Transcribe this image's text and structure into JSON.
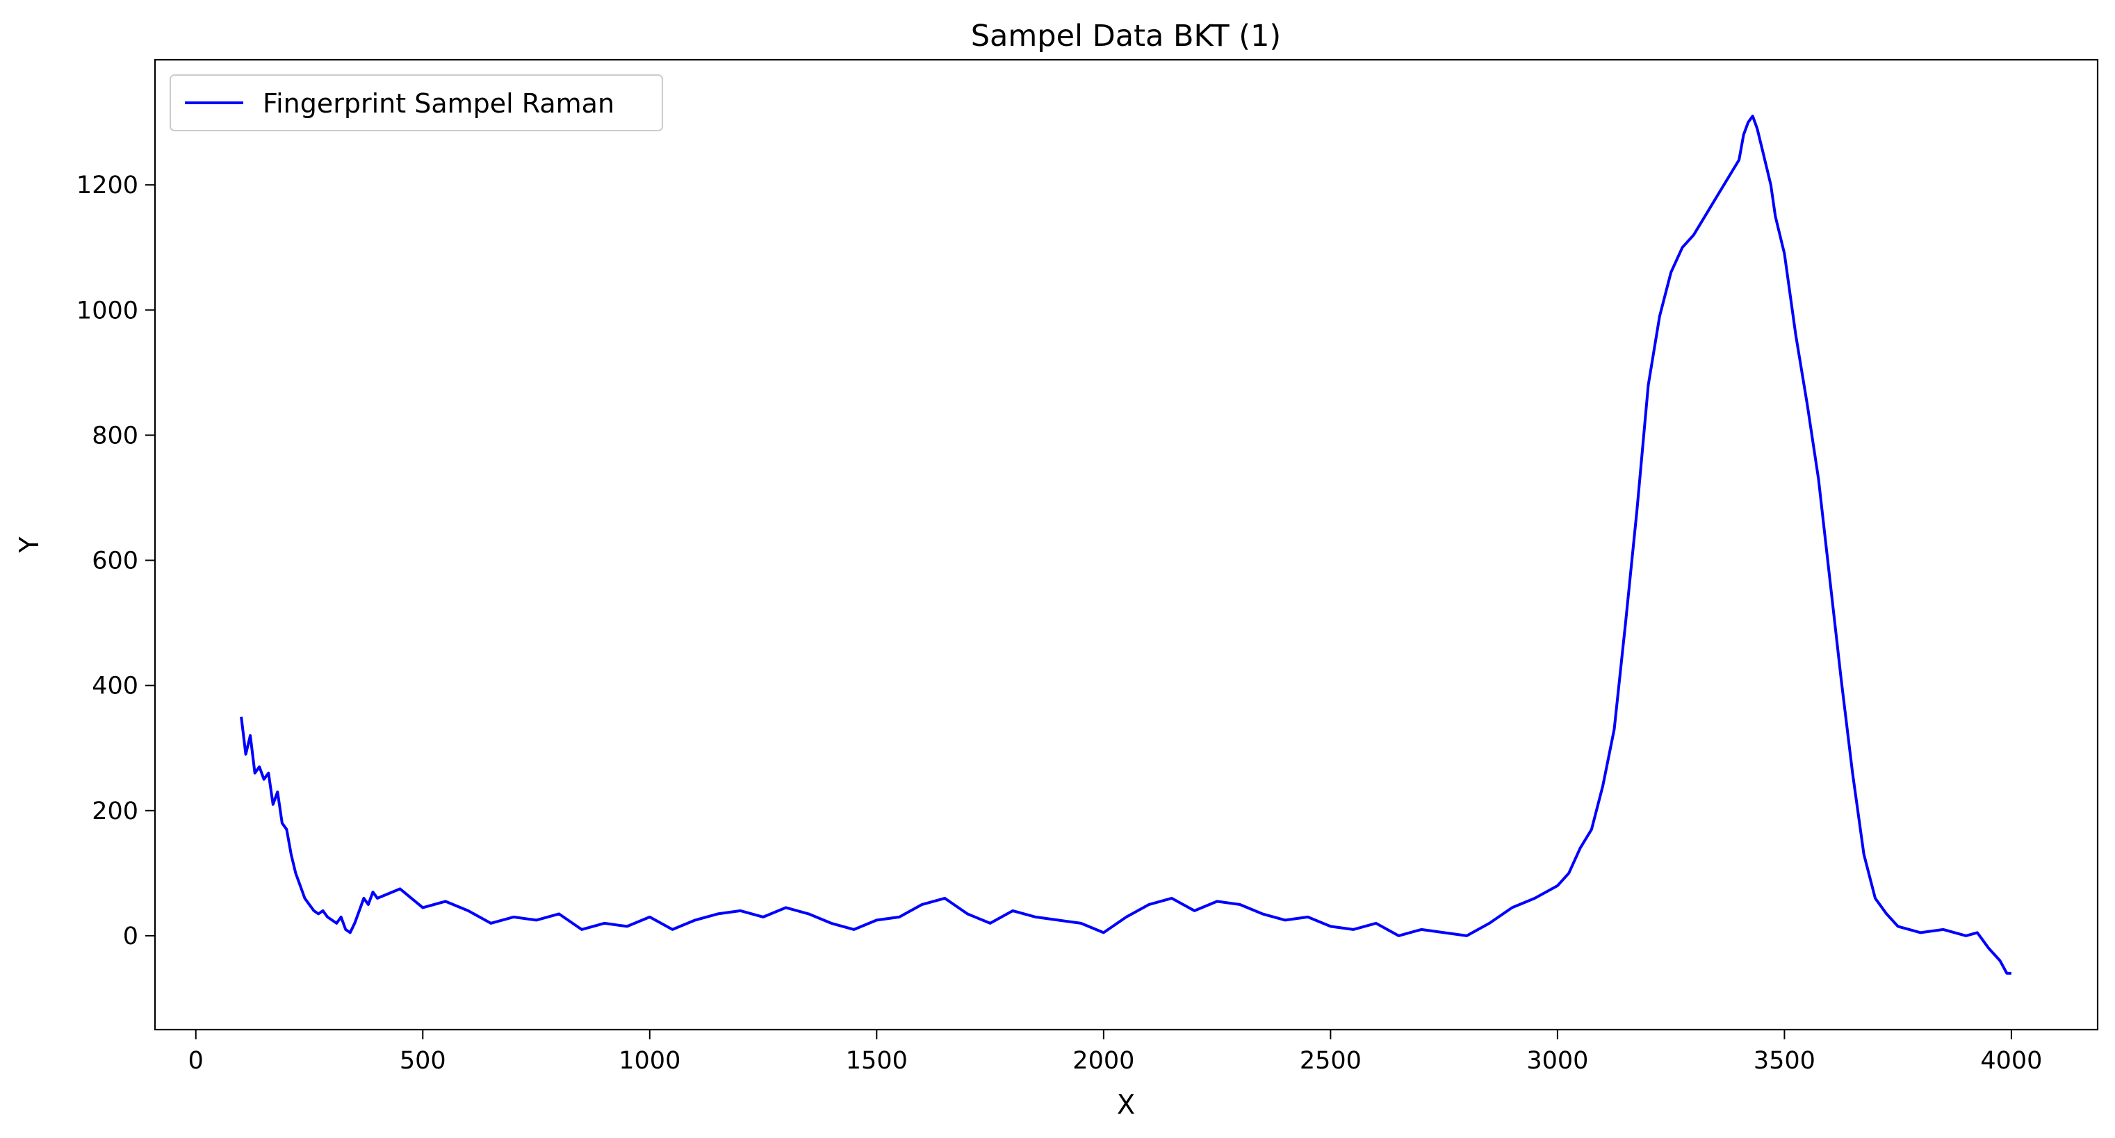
{
  "chart_data": {
    "type": "line",
    "title": "Sampel Data BKT (1)",
    "xlabel": "X",
    "ylabel": "Y",
    "xlim": [
      -90,
      4190
    ],
    "ylim": [
      -150,
      1400
    ],
    "xticks": [
      0,
      500,
      1000,
      1500,
      2000,
      2500,
      3000,
      3500,
      4000
    ],
    "yticks": [
      0,
      200,
      400,
      600,
      800,
      1000,
      1200
    ],
    "grid": false,
    "legend_position": "top-left",
    "series": [
      {
        "name": "Fingerprint Sampel Raman",
        "color": "#0000ff",
        "x": [
          100,
          110,
          120,
          130,
          140,
          150,
          160,
          170,
          180,
          190,
          200,
          210,
          220,
          230,
          240,
          250,
          260,
          270,
          280,
          290,
          300,
          310,
          320,
          330,
          340,
          350,
          360,
          370,
          380,
          390,
          400,
          450,
          500,
          550,
          600,
          650,
          700,
          750,
          800,
          850,
          900,
          950,
          1000,
          1050,
          1100,
          1150,
          1200,
          1250,
          1300,
          1350,
          1400,
          1450,
          1500,
          1550,
          1600,
          1650,
          1700,
          1750,
          1800,
          1850,
          1900,
          1950,
          2000,
          2050,
          2100,
          2150,
          2200,
          2250,
          2300,
          2350,
          2400,
          2450,
          2500,
          2550,
          2600,
          2650,
          2700,
          2750,
          2800,
          2850,
          2900,
          2950,
          3000,
          3025,
          3050,
          3075,
          3100,
          3125,
          3150,
          3175,
          3200,
          3225,
          3250,
          3275,
          3300,
          3325,
          3350,
          3375,
          3400,
          3410,
          3420,
          3430,
          3440,
          3450,
          3460,
          3470,
          3480,
          3500,
          3525,
          3550,
          3575,
          3600,
          3625,
          3650,
          3675,
          3700,
          3725,
          3750,
          3800,
          3850,
          3900,
          3925,
          3950,
          3975,
          3990,
          4000
        ],
        "y": [
          350,
          290,
          320,
          260,
          270,
          250,
          260,
          210,
          230,
          180,
          170,
          130,
          100,
          80,
          60,
          50,
          40,
          35,
          40,
          30,
          25,
          20,
          30,
          10,
          5,
          20,
          40,
          60,
          50,
          70,
          60,
          75,
          45,
          55,
          40,
          20,
          30,
          25,
          35,
          10,
          20,
          15,
          30,
          10,
          25,
          35,
          40,
          30,
          45,
          35,
          20,
          10,
          25,
          30,
          50,
          60,
          35,
          20,
          40,
          30,
          25,
          20,
          5,
          30,
          50,
          60,
          40,
          55,
          50,
          35,
          25,
          30,
          15,
          10,
          20,
          0,
          10,
          5,
          0,
          20,
          45,
          60,
          80,
          100,
          140,
          170,
          240,
          330,
          500,
          680,
          880,
          990,
          1060,
          1100,
          1120,
          1150,
          1180,
          1210,
          1240,
          1280,
          1300,
          1310,
          1290,
          1260,
          1230,
          1200,
          1150,
          1090,
          960,
          850,
          730,
          570,
          410,
          260,
          130,
          60,
          35,
          15,
          5,
          10,
          0,
          5,
          -20,
          -40,
          -60,
          -60
        ]
      }
    ]
  }
}
